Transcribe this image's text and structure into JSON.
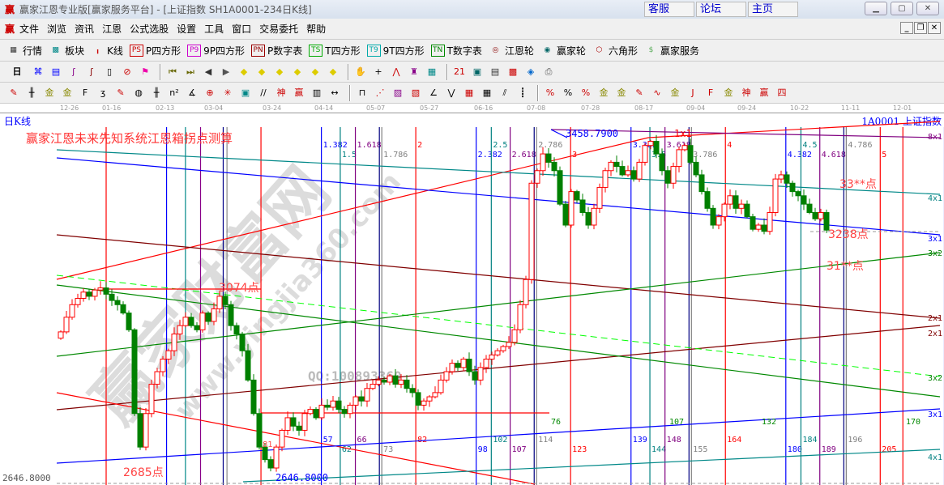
{
  "titlebar": {
    "logo": "赢",
    "title": "赢家江恩专业版[赢家服务平台] - [上证指数  SH1A0001-234日K线]",
    "links": [
      "客服",
      "论坛",
      "主页"
    ],
    "window_buttons": [
      "minimize",
      "maximize",
      "close"
    ]
  },
  "menu": {
    "logo": "赢",
    "items": [
      "文件",
      "浏览",
      "资讯",
      "江恩",
      "公式选股",
      "设置",
      "工具",
      "窗口",
      "交易委托",
      "帮助"
    ]
  },
  "toolbar1": [
    {
      "icon": "quote-table-icon",
      "label": "行情",
      "glyph": "▦",
      "color": "#333"
    },
    {
      "icon": "sector-icon",
      "label": "板块",
      "glyph": "▩",
      "color": "#088"
    },
    {
      "icon": "kline-icon",
      "label": "K线",
      "glyph": "╻",
      "color": "#c00"
    },
    {
      "icon": "ps-icon",
      "label": "P四方形",
      "glyph": "PS",
      "color": "#c00"
    },
    {
      "icon": "p9-icon",
      "label": "9P四方形",
      "glyph": "P9",
      "color": "#c0c"
    },
    {
      "icon": "pn-icon",
      "label": "P数字表",
      "glyph": "PN",
      "color": "#900"
    },
    {
      "icon": "ts-icon",
      "label": "T四方形",
      "glyph": "TS",
      "color": "#0a0"
    },
    {
      "icon": "t9-icon",
      "label": "9T四方形",
      "glyph": "T9",
      "color": "#0aa"
    },
    {
      "icon": "tn-icon",
      "label": "T数字表",
      "glyph": "TN",
      "color": "#080"
    },
    {
      "icon": "gann-wheel-icon",
      "label": "江恩轮",
      "glyph": "◎",
      "color": "#800"
    },
    {
      "icon": "winner-wheel-icon",
      "label": "赢家轮",
      "glyph": "◉",
      "color": "#066"
    },
    {
      "icon": "hexagon-icon",
      "label": "六角形",
      "glyph": "⬡",
      "color": "#a00"
    },
    {
      "icon": "dollar-icon",
      "label": "赢家服务",
      "glyph": "$",
      "color": "#5a5"
    }
  ],
  "toolbar2": {
    "period": "日",
    "icons": [
      {
        "name": "analysis-icon",
        "glyph": "⌘",
        "color": "#00f"
      },
      {
        "name": "notes-icon",
        "glyph": "▤",
        "color": "#00f"
      },
      {
        "name": "chart3-icon",
        "glyph": "ʃ",
        "color": "#808"
      },
      {
        "name": "chart9-icon",
        "glyph": "ʃ",
        "color": "#800"
      },
      {
        "name": "candle-icon",
        "glyph": "▯",
        "color": "#000"
      },
      {
        "name": "cancel-icon",
        "glyph": "⊘",
        "color": "#c00"
      },
      {
        "name": "flag-icon",
        "glyph": "⚑",
        "color": "#e0a"
      },
      {
        "name": "first-icon",
        "glyph": "⏮",
        "color": "#660"
      },
      {
        "name": "last-icon",
        "glyph": "⏭",
        "color": "#660"
      },
      {
        "name": "left-icon",
        "glyph": "◀",
        "color": "#333"
      },
      {
        "name": "right-icon",
        "glyph": "▶",
        "color": "#555"
      },
      {
        "name": "shift-left-icon",
        "glyph": "◆",
        "color": "#dc0"
      },
      {
        "name": "shift-right-icon",
        "glyph": "◆",
        "color": "#dc0"
      },
      {
        "name": "expand-h-icon",
        "glyph": "◆",
        "color": "#dc0"
      },
      {
        "name": "shrink-h-icon",
        "glyph": "◆",
        "color": "#dc0"
      },
      {
        "name": "expand-v-icon",
        "glyph": "◆",
        "color": "#dc0"
      },
      {
        "name": "shrink-v-icon",
        "glyph": "◆",
        "color": "#dc0"
      },
      {
        "name": "hand-icon",
        "glyph": "✋",
        "color": "#333"
      },
      {
        "name": "crosshair-icon",
        "glyph": "+",
        "color": "#000"
      },
      {
        "name": "zigzag-icon",
        "glyph": "⋀",
        "color": "#c00"
      },
      {
        "name": "pattern-icon",
        "glyph": "♜",
        "color": "#808"
      },
      {
        "name": "grid-icon",
        "glyph": "▦",
        "color": "#088"
      },
      {
        "name": "calendar-icon",
        "glyph": "21",
        "color": "#c00"
      },
      {
        "name": "calculator-icon",
        "glyph": "▣",
        "color": "#066"
      },
      {
        "name": "report-icon",
        "glyph": "▤",
        "color": "#333"
      },
      {
        "name": "save-icon",
        "glyph": "▩",
        "color": "#c00"
      },
      {
        "name": "network-icon",
        "glyph": "◈",
        "color": "#06c"
      },
      {
        "name": "print-icon",
        "glyph": "⎙",
        "color": "#555"
      }
    ]
  },
  "toolbar3": {
    "icons": [
      {
        "name": "pen-icon",
        "glyph": "✎",
        "color": "#c00"
      },
      {
        "name": "lines-icon",
        "glyph": "╫",
        "color": "#000"
      },
      {
        "name": "gold-icon",
        "glyph": "金",
        "color": "#880"
      },
      {
        "name": "gold2-icon",
        "glyph": "金",
        "color": "#880"
      },
      {
        "name": "fib-icon",
        "glyph": "F",
        "color": "#000"
      },
      {
        "name": "spiral-icon",
        "glyph": "ʒ",
        "color": "#000"
      },
      {
        "name": "marker-icon",
        "glyph": "✎",
        "color": "#c00"
      },
      {
        "name": "circle-icon",
        "glyph": "◍",
        "color": "#000"
      },
      {
        "name": "cycle-icon",
        "glyph": "╫",
        "color": "#000"
      },
      {
        "name": "n2-icon",
        "glyph": "n²",
        "color": "#000"
      },
      {
        "name": "angle-icon",
        "glyph": "∡",
        "color": "#000"
      },
      {
        "name": "target-icon",
        "glyph": "⊕",
        "color": "#c00"
      },
      {
        "name": "web-icon",
        "glyph": "✳",
        "color": "#c00"
      },
      {
        "name": "box-icon",
        "glyph": "▣",
        "color": "#088"
      },
      {
        "name": "parallel-icon",
        "glyph": "//",
        "color": "#000"
      },
      {
        "name": "shen-icon",
        "glyph": "神",
        "color": "#c00"
      },
      {
        "name": "ying-icon",
        "glyph": "赢",
        "color": "#c00"
      },
      {
        "name": "ruler-icon",
        "glyph": "▥",
        "color": "#000"
      },
      {
        "name": "width-icon",
        "glyph": "↔",
        "color": "#000"
      },
      {
        "name": "square-icon",
        "glyph": "⊓",
        "color": "#000"
      },
      {
        "name": "fan-icon",
        "glyph": "⋰",
        "color": "#c00"
      },
      {
        "name": "fan-box-icon",
        "glyph": "▨",
        "color": "#808"
      },
      {
        "name": "fan-box2-icon",
        "glyph": "▧",
        "color": "#c00"
      },
      {
        "name": "gann-fan-icon",
        "glyph": "∠",
        "color": "#000"
      },
      {
        "name": "wave-icon",
        "glyph": "⋁",
        "color": "#000"
      },
      {
        "name": "grid-red-icon",
        "glyph": "▦",
        "color": "#c00"
      },
      {
        "name": "grid-black-icon",
        "glyph": "▦",
        "color": "#000"
      },
      {
        "name": "slash-icon",
        "glyph": "⫽",
        "color": "#000"
      },
      {
        "name": "bars-icon",
        "glyph": "┋",
        "color": "#000"
      },
      {
        "name": "pct-line-icon",
        "glyph": "%",
        "color": "#c00"
      },
      {
        "name": "percent-icon",
        "glyph": "%",
        "color": "#000"
      },
      {
        "name": "pct-red-icon",
        "glyph": "%",
        "color": "#c00"
      },
      {
        "name": "gold-circle-icon",
        "glyph": "金",
        "color": "#880"
      },
      {
        "name": "gold-line-icon",
        "glyph": "金",
        "color": "#880"
      },
      {
        "name": "pencil-icon",
        "glyph": "✎",
        "color": "#c00"
      },
      {
        "name": "sine-icon",
        "glyph": "∿",
        "color": "#c00"
      },
      {
        "name": "gold-red-icon",
        "glyph": "金",
        "color": "#880"
      },
      {
        "name": "j-fan-icon",
        "glyph": "J",
        "color": "#c00"
      },
      {
        "name": "f-fan-icon",
        "glyph": "F",
        "color": "#c00"
      },
      {
        "name": "gold-fan-icon",
        "glyph": "金",
        "color": "#880"
      },
      {
        "name": "shen-fan-icon",
        "glyph": "神",
        "color": "#c00"
      },
      {
        "name": "ying-fan-icon",
        "glyph": "赢",
        "color": "#c00"
      },
      {
        "name": "si-fan-icon",
        "glyph": "四",
        "color": "#c00"
      }
    ]
  },
  "chart_header": {
    "period": "日K线",
    "symbol": "1A0001  上证指数"
  },
  "chart_data": {
    "type": "candlestick",
    "date_ticks": [
      "12-26",
      "01-16",
      "02-13",
      "03-04",
      "03-24",
      "04-14",
      "05-07",
      "05-27",
      "06-16",
      "07-08",
      "07-28",
      "08-17",
      "09-04",
      "09-24",
      "10-22",
      "11-11",
      "12-01"
    ],
    "ylim": [
      2646.8,
      3458.79
    ],
    "y_axis_min_label": "2646.8000",
    "high_label": "3458.7900",
    "low_label": "2646.8000",
    "closes": [
      2995,
      3030,
      3060,
      3075,
      3090,
      3080,
      3095,
      3100,
      3085,
      3070,
      3060,
      3040,
      3000,
      2800,
      2720,
      2800,
      2870,
      2900,
      2930,
      2950,
      2990,
      3010,
      3030,
      3010,
      3000,
      3040,
      3020,
      3050,
      3080,
      3060,
      3010,
      2990,
      2950,
      2880,
      2800,
      2720,
      2690,
      2670,
      2720,
      2760,
      2790,
      2770,
      2760,
      2800,
      2810,
      2790,
      2820,
      2815,
      2830,
      2810,
      2800,
      2820,
      2840,
      2830,
      2860,
      2870,
      2880,
      2875,
      2890,
      2870,
      2880,
      2860,
      2850,
      2820,
      2830,
      2840,
      2850,
      2880,
      2900,
      2920,
      2910,
      2930,
      2900,
      2880,
      2910,
      2930,
      2940,
      2950,
      2960,
      2970,
      3000,
      3060,
      3120,
      3350,
      3380,
      3420,
      3400,
      3380,
      3300,
      3250,
      3330,
      3310,
      3280,
      3250,
      3290,
      3340,
      3380,
      3400,
      3390,
      3370,
      3380,
      3360,
      3400,
      3440,
      3450,
      3420,
      3380,
      3350,
      3390,
      3430,
      3440,
      3400,
      3370,
      3330,
      3290,
      3250,
      3270,
      3300,
      3320,
      3290,
      3300,
      3270,
      3240,
      3250,
      3235,
      3280,
      3360,
      3370,
      3350,
      3330,
      3320,
      3300,
      3280,
      3265,
      3280,
      3238
    ],
    "up_color": "#ff0000",
    "down_color": "#008000",
    "time_cycles": [
      {
        "ratio": "1.382",
        "day": "57",
        "color": "#0000ff"
      },
      {
        "ratio": "1.5",
        "day": "62",
        "color": "#008080"
      },
      {
        "ratio": "1.618",
        "day": "66",
        "color": "#800080"
      },
      {
        "ratio": "1.786",
        "day": "73",
        "color": "#808080"
      },
      {
        "ratio": "2",
        "day": "82",
        "color": "#ff0000"
      },
      {
        "ratio": "2.382",
        "day": "98",
        "color": "#0000ff"
      },
      {
        "ratio": "2.5",
        "day": "102",
        "color": "#008080"
      },
      {
        "ratio": "2.618",
        "day": "107",
        "color": "#800080"
      },
      {
        "ratio": "2.786",
        "day": "114",
        "color": "#808080"
      },
      {
        "ratio": "3",
        "day": "123",
        "color": "#ff0000"
      },
      {
        "ratio": "3.382",
        "day": "139",
        "color": "#0000ff"
      },
      {
        "ratio": "3.5",
        "day": "144",
        "color": "#008080"
      },
      {
        "ratio": "3.618",
        "day": "148",
        "color": "#800080"
      },
      {
        "ratio": "3.786",
        "day": "155",
        "color": "#808080"
      },
      {
        "ratio": "4",
        "day": "164",
        "color": "#ff0000"
      },
      {
        "ratio": "4.382",
        "day": "180",
        "color": "#0000ff"
      },
      {
        "ratio": "4.5",
        "day": "184",
        "color": "#008080"
      },
      {
        "ratio": "4.618",
        "day": "189",
        "color": "#800080"
      },
      {
        "ratio": "4.786",
        "day": "196",
        "color": "#808080"
      },
      {
        "ratio": "5",
        "day": "205",
        "color": "#ff0000"
      }
    ],
    "green_counts": [
      "76",
      "107",
      "132",
      "170"
    ],
    "fan_labels": [
      {
        "text": "8x1",
        "color": "#800080"
      },
      {
        "text": "4x1",
        "color": "#008080"
      },
      {
        "text": "3x1",
        "color": "#0000ff"
      },
      {
        "text": "3x2",
        "color": "#008000"
      },
      {
        "text": "2x1",
        "color": "#800000"
      },
      {
        "text": "2x1",
        "color": "#800000"
      },
      {
        "text": "3x2",
        "color": "#008000"
      },
      {
        "text": "3x1",
        "color": "#0000ff"
      },
      {
        "text": "4x1",
        "color": "#008080"
      },
      {
        "text": "1x1",
        "color": "#ff0000"
      }
    ],
    "annotations": {
      "title": "赢家江恩未来先知系统江恩箱拐点测算",
      "p3074": "3074点",
      "p2685": "2685点",
      "p33": "33**点",
      "p3238": "3238点",
      "p31": "31**点",
      "p31_label": "81"
    }
  },
  "watermark": {
    "brand": "赢家财富网",
    "url": "www.yingjia360.com",
    "qq": "QQ:100893360"
  }
}
